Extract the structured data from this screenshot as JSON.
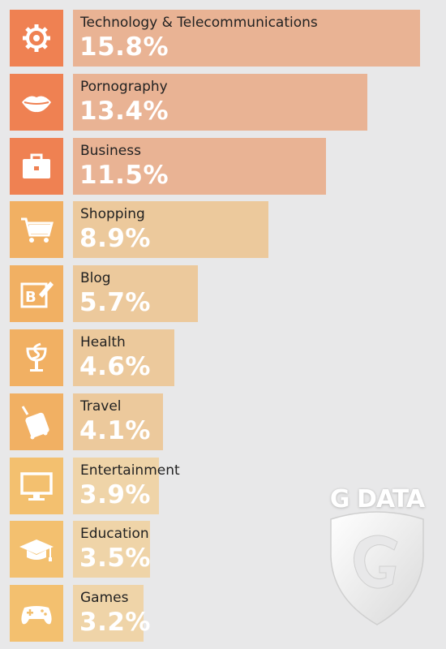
{
  "chart_data": {
    "type": "bar",
    "orientation": "horizontal",
    "categories": [
      "Technology & Telecommunications",
      "Pornography",
      "Business",
      "Shopping",
      "Blog",
      "Health",
      "Travel",
      "Entertainment",
      "Education",
      "Games"
    ],
    "values": [
      15.8,
      13.4,
      11.5,
      8.9,
      5.7,
      4.6,
      4.1,
      3.9,
      3.5,
      3.2
    ],
    "value_labels": [
      "15.8%",
      "13.4%",
      "11.5%",
      "8.9%",
      "5.7%",
      "4.6%",
      "4.1%",
      "3.9%",
      "3.5%",
      "3.2%"
    ],
    "icons": [
      "gear-icon",
      "lips-icon",
      "briefcase-icon",
      "shopping-cart-icon",
      "blog-icon",
      "health-icon",
      "luggage-icon",
      "monitor-icon",
      "graduation-cap-icon",
      "gamepad-icon"
    ],
    "colors": [
      "#ef8152",
      "#ef8152",
      "#ef8152",
      "#f1b063",
      "#f1b063",
      "#f1b063",
      "#f1b063",
      "#f3c06f",
      "#f3c06f",
      "#f3c06f"
    ],
    "bar_colors": [
      "#e9b394",
      "#e9b394",
      "#e9b394",
      "#ecc99c",
      "#ecc99c",
      "#ecc99c",
      "#ecc99c",
      "#efd4a8",
      "#efd4a8",
      "#efd4a8"
    ],
    "title": "",
    "xlabel": "",
    "ylabel": "",
    "grid": false,
    "legend": "none"
  },
  "branding": {
    "logo_text": "G DATA"
  }
}
